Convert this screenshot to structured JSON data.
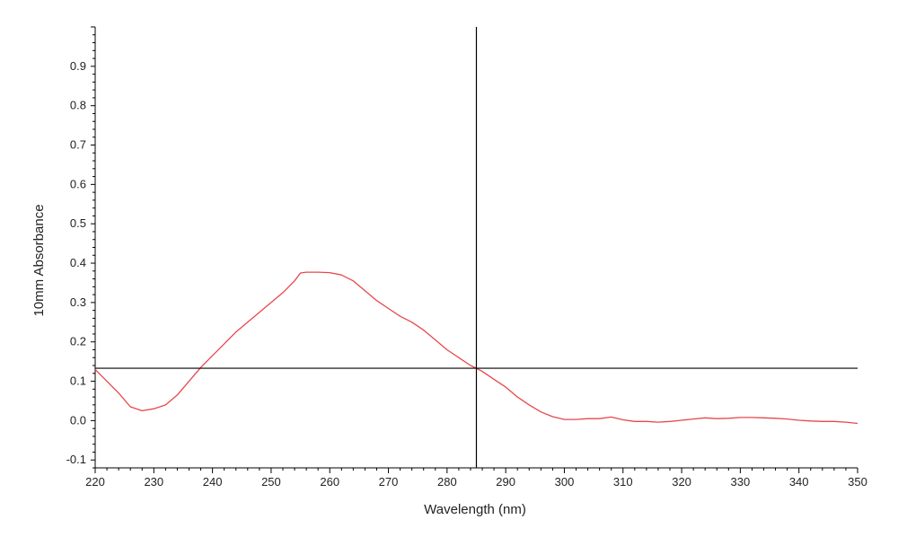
{
  "chart_data": {
    "type": "line",
    "title": "",
    "xlabel": "Wavelength (nm)",
    "ylabel": "10mm Absorbance",
    "xlim": [
      220,
      350
    ],
    "ylim": [
      -0.12,
      1.0
    ],
    "x_ticks": [
      220,
      230,
      240,
      250,
      260,
      270,
      280,
      290,
      300,
      310,
      320,
      330,
      340,
      350
    ],
    "y_ticks": [
      -0.1,
      0.0,
      0.1,
      0.2,
      0.3,
      0.4,
      0.5,
      0.6,
      0.7,
      0.8,
      0.9
    ],
    "x_tick_labels": [
      "220",
      "230",
      "240",
      "250",
      "260",
      "270",
      "280",
      "290",
      "300",
      "310",
      "320",
      "330",
      "340",
      "350"
    ],
    "y_tick_labels": [
      "-0.1",
      "0.0",
      "0.1",
      "0.2",
      "0.3",
      "0.4",
      "0.5",
      "0.6",
      "0.7",
      "0.8",
      "0.9"
    ],
    "grid": false,
    "legend": "none",
    "cursor": {
      "x": 285,
      "y": 0.133,
      "color": "#000000"
    },
    "series": [
      {
        "color": "#e8474c",
        "x": [
          220,
          222,
          224,
          226,
          228,
          230,
          232,
          234,
          236,
          238,
          240,
          242,
          244,
          246,
          248,
          250,
          252,
          254,
          255,
          256,
          258,
          260,
          262,
          264,
          266,
          268,
          270,
          272,
          274,
          276,
          278,
          280,
          282,
          284,
          285,
          286,
          288,
          290,
          292,
          294,
          296,
          298,
          300,
          302,
          304,
          306,
          308,
          310,
          312,
          314,
          316,
          318,
          320,
          322,
          324,
          326,
          328,
          330,
          332,
          334,
          336,
          338,
          340,
          342,
          344,
          346,
          348,
          350
        ],
        "y": [
          0.13,
          0.1,
          0.07,
          0.035,
          0.025,
          0.03,
          0.04,
          0.065,
          0.1,
          0.135,
          0.165,
          0.195,
          0.225,
          0.25,
          0.275,
          0.3,
          0.325,
          0.355,
          0.375,
          0.377,
          0.377,
          0.376,
          0.37,
          0.355,
          0.33,
          0.305,
          0.285,
          0.265,
          0.25,
          0.23,
          0.205,
          0.18,
          0.16,
          0.14,
          0.133,
          0.125,
          0.105,
          0.085,
          0.06,
          0.04,
          0.022,
          0.01,
          0.003,
          0.003,
          0.005,
          0.005,
          0.009,
          0.002,
          -0.002,
          -0.002,
          -0.004,
          -0.002,
          0.001,
          0.004,
          0.007,
          0.005,
          0.006,
          0.008,
          0.008,
          0.007,
          0.006,
          0.004,
          0.001,
          -0.001,
          -0.002,
          -0.002,
          -0.004,
          -0.007
        ]
      }
    ]
  }
}
